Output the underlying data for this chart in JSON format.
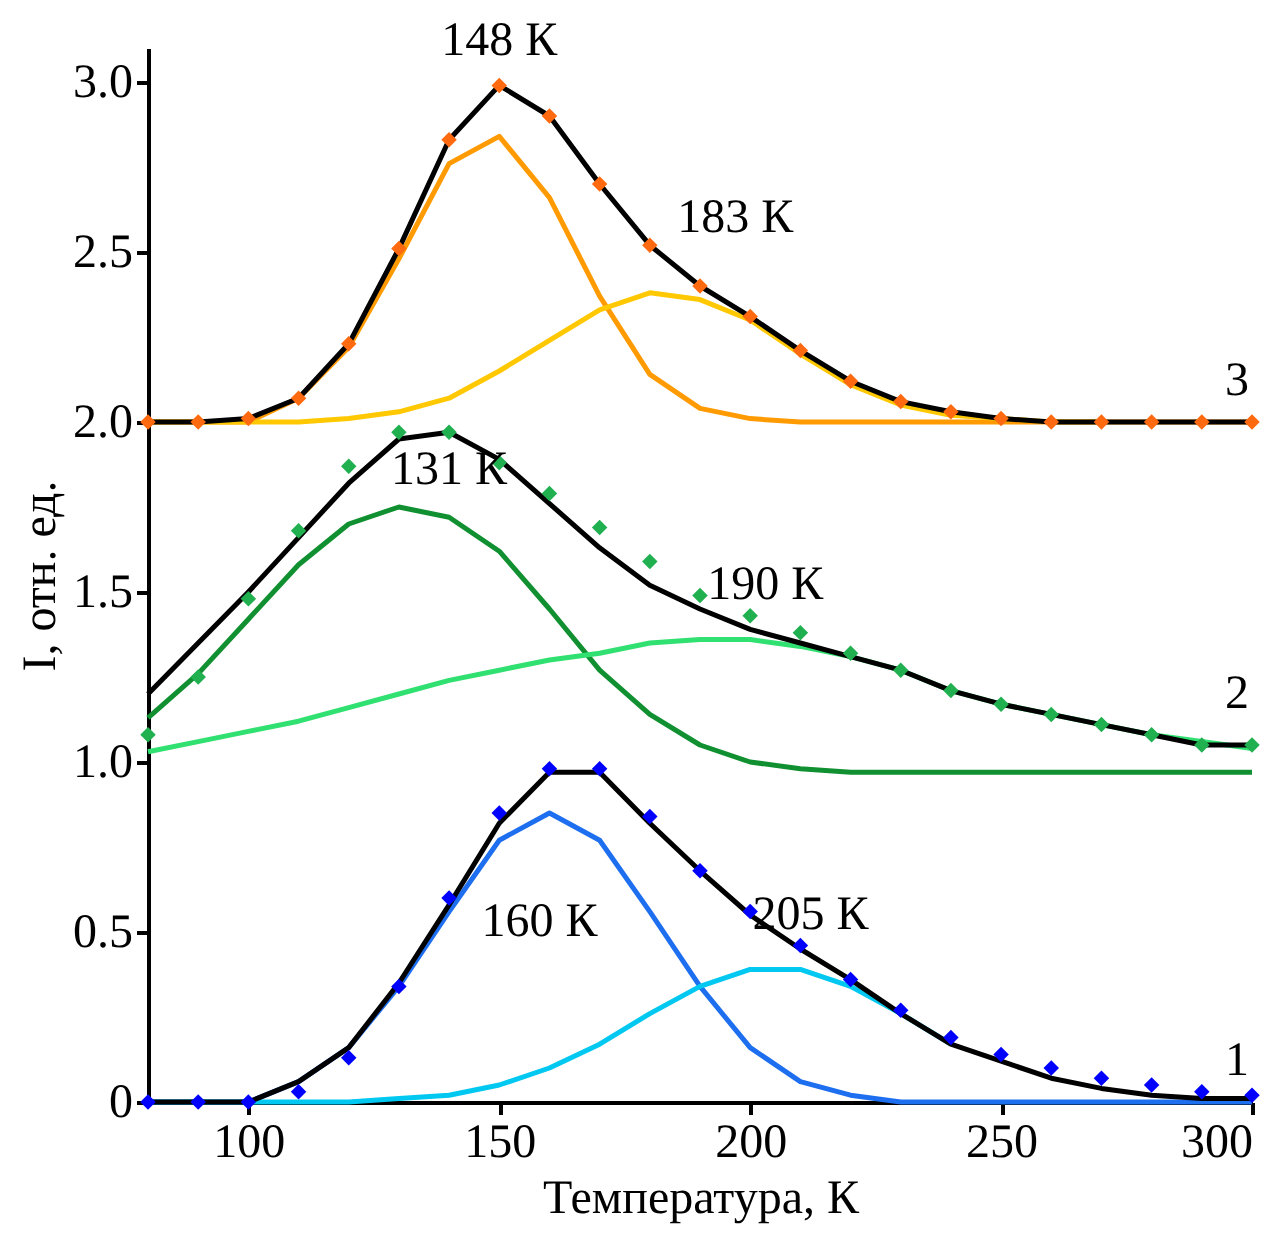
{
  "chart_data": {
    "type": "line",
    "xlabel": "Температура, К",
    "ylabel": "I, отн. ед.",
    "x": [
      80,
      90,
      100,
      110,
      120,
      130,
      140,
      150,
      160,
      170,
      180,
      190,
      200,
      210,
      220,
      230,
      240,
      250,
      260,
      270,
      280,
      290,
      300
    ],
    "xlim": [
      80,
      300
    ],
    "xticks": [
      100,
      150,
      200,
      250,
      300
    ],
    "ylim": [
      0,
      3.1
    ],
    "yticks": [
      {
        "value": 0,
        "label": "0"
      },
      {
        "value": 0.5,
        "label": "0.5"
      },
      {
        "value": 1,
        "label": "1.0"
      },
      {
        "value": 1.5,
        "label": "1.5"
      },
      {
        "value": 2,
        "label": "2.0"
      },
      {
        "value": 2.5,
        "label": "2.5"
      },
      {
        "value": 3,
        "label": "3.0"
      }
    ],
    "grid": false,
    "marker": "none",
    "line_style": "solid",
    "series": [
      {
        "color": "#1e6ef0",
        "values": [
          0,
          0,
          0,
          0.06,
          0.16,
          0.34,
          0.56,
          0.77,
          0.85,
          0.77,
          0.56,
          0.34,
          0.16,
          0.06,
          0.02,
          0,
          0,
          0,
          0,
          0,
          0,
          0,
          0
        ]
      },
      {
        "color": "#00c8f0",
        "values": [
          0,
          0,
          0,
          0,
          0,
          0.01,
          0.02,
          0.05,
          0.1,
          0.17,
          0.26,
          0.34,
          0.39,
          0.39,
          0.34,
          0.26,
          0.17,
          null,
          null,
          null,
          null,
          null,
          null
        ]
      },
      {
        "color": "#000000",
        "values": [
          0,
          0,
          0,
          0.06,
          0.16,
          0.35,
          0.58,
          0.82,
          0.97,
          0.97,
          0.82,
          0.68,
          0.55,
          0.45,
          0.36,
          0.26,
          0.17,
          0.12,
          0.07,
          0.04,
          0.02,
          0.01,
          0.01
        ]
      },
      {
        "type": "scatter",
        "marker": "diamond",
        "color": "#0000ff",
        "values": [
          0,
          0,
          0,
          0.03,
          0.13,
          0.34,
          0.6,
          0.85,
          0.98,
          0.98,
          0.84,
          0.68,
          0.56,
          0.46,
          0.36,
          0.27,
          0.19,
          0.14,
          0.1,
          0.07,
          0.05,
          0.03,
          0.02
        ]
      },
      {
        "color": "#109030",
        "values": [
          1.13,
          1.26,
          1.42,
          1.58,
          1.7,
          1.75,
          1.72,
          1.62,
          1.45,
          1.27,
          1.14,
          1.05,
          1.0,
          0.98,
          0.97,
          0.97,
          0.97,
          0.97,
          0.97,
          0.97,
          0.97,
          0.97,
          0.97
        ]
      },
      {
        "color": "#30e070",
        "values": [
          1.03,
          1.06,
          1.09,
          1.12,
          1.16,
          1.2,
          1.24,
          1.27,
          1.3,
          1.32,
          1.35,
          1.36,
          1.36,
          1.34,
          1.31,
          1.27,
          1.21,
          1.17,
          1.14,
          1.11,
          1.08,
          1.06,
          1.04
        ]
      },
      {
        "color": "#000000",
        "values": [
          1.2,
          1.35,
          1.5,
          1.66,
          1.82,
          1.95,
          1.97,
          1.89,
          1.76,
          1.63,
          1.52,
          1.45,
          1.39,
          1.35,
          1.31,
          1.27,
          1.21,
          1.17,
          1.14,
          1.11,
          1.08,
          1.05,
          1.05
        ]
      },
      {
        "type": "scatter",
        "marker": "diamond",
        "color": "#20b050",
        "values": [
          1.08,
          1.25,
          1.48,
          1.68,
          1.87,
          1.97,
          1.97,
          1.88,
          1.79,
          1.69,
          1.59,
          1.49,
          1.43,
          1.38,
          1.32,
          1.27,
          1.21,
          1.17,
          1.14,
          1.11,
          1.08,
          1.05,
          1.05
        ]
      },
      {
        "color": "#ff9a00",
        "values": [
          2.0,
          2.0,
          2.0,
          2.07,
          2.22,
          2.48,
          2.76,
          2.84,
          2.66,
          2.37,
          2.14,
          2.04,
          2.01,
          2.0,
          2.0,
          2.0,
          2.0,
          2.0,
          2.0,
          2.0,
          2.0,
          2.0,
          2.0
        ]
      },
      {
        "color": "#ffc800",
        "values": [
          2.0,
          2.0,
          2.0,
          2.0,
          2.01,
          2.03,
          2.07,
          2.15,
          2.24,
          2.33,
          2.38,
          2.36,
          2.3,
          2.2,
          2.11,
          2.05,
          2.02,
          2.01,
          2.0,
          2.0,
          null,
          null,
          null
        ]
      },
      {
        "color": "#000000",
        "values": [
          2.0,
          2.0,
          2.01,
          2.07,
          2.23,
          2.51,
          2.83,
          2.99,
          2.9,
          2.7,
          2.52,
          2.4,
          2.31,
          2.21,
          2.12,
          2.06,
          2.03,
          2.01,
          2.0,
          2.0,
          2.0,
          2.0,
          2.0
        ]
      },
      {
        "type": "scatter",
        "marker": "diamond",
        "color": "#ff6a10",
        "values": [
          2.0,
          2.0,
          2.01,
          2.07,
          2.23,
          2.51,
          2.83,
          2.99,
          2.9,
          2.7,
          2.52,
          2.4,
          2.31,
          2.21,
          2.12,
          2.06,
          2.03,
          2.01,
          2.0,
          2.0,
          2.0,
          2.0,
          2.0
        ]
      }
    ],
    "annotations": [
      "148 К",
      "183 К",
      "131 К",
      "190 К",
      "160 К",
      "205 К",
      "3",
      "2",
      "1"
    ]
  }
}
